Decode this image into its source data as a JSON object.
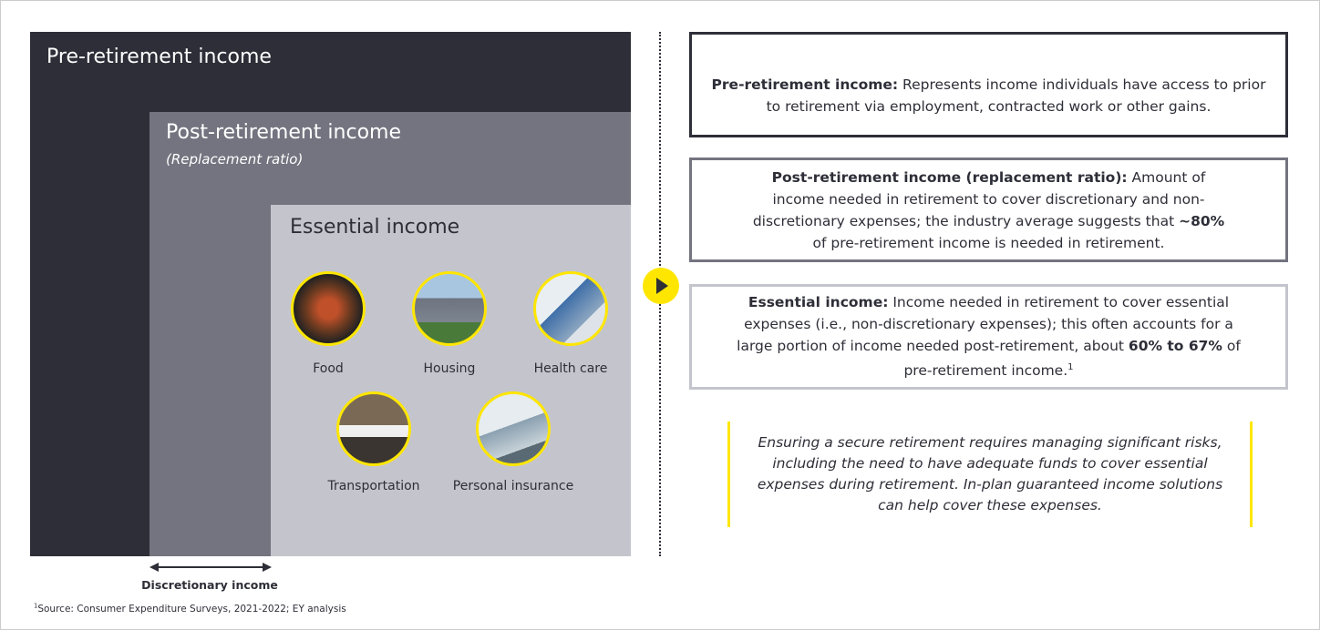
{
  "left": {
    "pre_title": "Pre-retirement income",
    "post_title": "Post-retirement income",
    "post_subtitle": "(Replacement ratio)",
    "essential_title": "Essential income",
    "items": [
      "Food",
      "Housing",
      "Health care",
      "Transportation",
      "Personal insurance"
    ],
    "discretionary": "Discretionary income"
  },
  "footnote": [
    {
      "text": "1",
      "style": "sup"
    },
    {
      "text": "Source: Consumer Expenditure Surveys, 2021-2022; EY analysis"
    }
  ],
  "right": {
    "boxes": [
      [
        {
          "text": "Pre-retirement income:",
          "style": "bold"
        },
        {
          "text": " Represents income individuals have access to prior to retirement via employment, contracted work or other gains."
        }
      ],
      [
        {
          "text": "Post-retirement income (replacement ratio):",
          "style": "bold"
        },
        {
          "text": " Amount of income needed in retirement to cover discretionary and non-discretionary expenses; the industry average suggests that "
        },
        {
          "text": "~80%",
          "style": "bold"
        },
        {
          "text": " of pre-retirement income is needed in retirement."
        }
      ],
      [
        {
          "text": "Essential income:",
          "style": "bold"
        },
        {
          "text": " Income needed in retirement to cover essential expenses (i.e., non-discretionary expenses); this often accounts for a large portion of income needed post-retirement, about "
        },
        {
          "text": "60% to 67%",
          "style": "bold"
        },
        {
          "text": " of pre-retirement income."
        },
        {
          "text": "1",
          "style": "sup"
        }
      ]
    ],
    "quote": "Ensuring a secure retirement requires managing significant risks, including the need to have adequate funds to cover essential expenses during retirement. In-plan guaranteed income solutions can help cover these expenses."
  }
}
